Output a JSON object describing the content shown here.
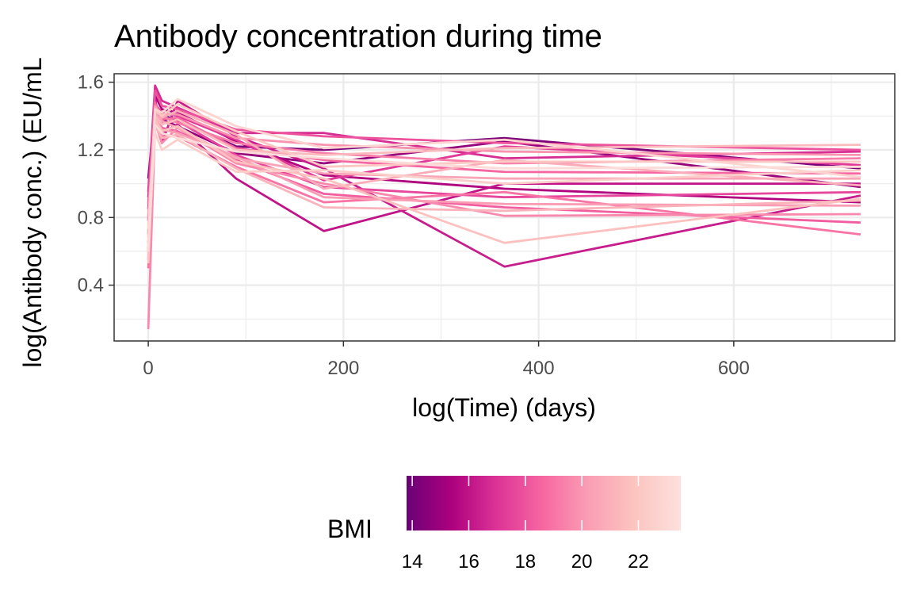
{
  "chart_data": {
    "type": "line",
    "title": "Antibody concentration during time",
    "xlabel": "log(Time) (days)",
    "ylabel": "log(Antibody conc.) (EU/mL",
    "xlim": [
      -35,
      765
    ],
    "ylim": [
      0.07,
      1.65
    ],
    "x_ticks": [
      0,
      200,
      400,
      600
    ],
    "x_tick_labels": [
      "0",
      "200",
      "400",
      "600"
    ],
    "x_minor_ticks": [
      100,
      300,
      500,
      700
    ],
    "y_ticks": [
      0.4,
      0.8,
      1.2,
      1.6
    ],
    "y_tick_labels": [
      "0.4",
      "0.8",
      "1.2",
      "1.6"
    ],
    "y_minor_ticks": [
      0.2,
      0.6,
      1.0,
      1.4
    ],
    "grid": true,
    "color_scale": {
      "name": "BMI",
      "min": 13.8,
      "max": 23.5,
      "ticks": [
        14,
        16,
        18,
        20,
        22
      ],
      "tick_labels": [
        "14",
        "16",
        "18",
        "20",
        "22"
      ],
      "colors": [
        "#6a0177",
        "#ae017e",
        "#dd3497",
        "#f768a1",
        "#fa9fb5",
        "#fcc5c0",
        "#fde0dd"
      ],
      "position": "bottom"
    },
    "x": [
      0,
      7,
      14,
      30,
      90,
      180,
      365,
      730
    ],
    "series": [
      {
        "bmi": 14.2,
        "values": [
          1.03,
          1.45,
          1.4,
          1.38,
          1.22,
          1.2,
          1.27,
          1.09
        ]
      },
      {
        "bmi": 14.8,
        "values": [
          0.92,
          1.4,
          1.38,
          1.34,
          1.18,
          1.12,
          1.25,
          0.98
        ]
      },
      {
        "bmi": 15.5,
        "values": [
          0.85,
          1.52,
          1.44,
          1.42,
          1.25,
          1.05,
          0.97,
          0.89
        ]
      },
      {
        "bmi": 16.0,
        "values": [
          0.78,
          1.5,
          1.3,
          1.35,
          1.03,
          0.72,
          1.0,
          1.0
        ]
      },
      {
        "bmi": 16.3,
        "values": [
          0.6,
          1.38,
          1.24,
          1.49,
          1.28,
          1.09,
          0.51,
          0.93
        ]
      },
      {
        "bmi": 16.8,
        "values": [
          0.95,
          1.58,
          1.49,
          1.45,
          1.3,
          1.3,
          1.15,
          1.19
        ]
      },
      {
        "bmi": 17.2,
        "values": [
          0.7,
          1.47,
          1.42,
          1.4,
          1.26,
          1.02,
          1.22,
          1.11
        ]
      },
      {
        "bmi": 17.6,
        "values": [
          0.55,
          1.43,
          1.36,
          1.37,
          1.17,
          0.98,
          0.92,
          0.95
        ]
      },
      {
        "bmi": 18.0,
        "values": [
          0.88,
          1.55,
          1.46,
          1.44,
          1.32,
          1.28,
          1.24,
          1.2
        ]
      },
      {
        "bmi": 18.3,
        "values": [
          0.65,
          1.41,
          1.33,
          1.31,
          1.14,
          0.94,
          0.86,
          0.77
        ]
      },
      {
        "bmi": 18.6,
        "values": [
          0.8,
          1.48,
          1.38,
          1.39,
          1.21,
          1.14,
          1.07,
          1.06
        ]
      },
      {
        "bmi": 19.0,
        "values": [
          0.5,
          1.36,
          1.28,
          1.28,
          1.1,
          0.89,
          0.95,
          0.7
        ]
      },
      {
        "bmi": 19.3,
        "values": [
          0.72,
          1.44,
          1.4,
          1.36,
          1.24,
          1.18,
          1.12,
          1.15
        ]
      },
      {
        "bmi": 19.6,
        "values": [
          0.14,
          1.36,
          1.24,
          1.33,
          1.12,
          1.0,
          0.81,
          0.82
        ]
      },
      {
        "bmi": 19.9,
        "values": [
          0.62,
          1.46,
          1.41,
          1.41,
          1.27,
          1.23,
          1.19,
          1.17
        ]
      },
      {
        "bmi": 20.2,
        "values": [
          0.82,
          1.39,
          1.32,
          1.3,
          1.16,
          0.92,
          0.88,
          0.87
        ]
      },
      {
        "bmi": 20.5,
        "values": [
          0.58,
          1.42,
          1.37,
          1.33,
          1.15,
          1.06,
          1.03,
          1.03
        ]
      },
      {
        "bmi": 20.8,
        "values": [
          0.68,
          1.45,
          1.39,
          1.43,
          1.29,
          0.97,
          1.14,
          0.99
        ]
      },
      {
        "bmi": 21.1,
        "values": [
          0.75,
          1.34,
          1.27,
          1.29,
          1.09,
          0.86,
          0.84,
          0.9
        ]
      },
      {
        "bmi": 21.4,
        "values": [
          0.57,
          1.4,
          1.35,
          1.38,
          1.2,
          1.17,
          1.21,
          1.23
        ]
      },
      {
        "bmi": 21.7,
        "values": [
          0.63,
          1.38,
          1.31,
          1.34,
          1.13,
          1.03,
          0.65,
          0.91
        ]
      },
      {
        "bmi": 22.0,
        "values": [
          0.53,
          1.43,
          1.4,
          1.47,
          1.31,
          1.1,
          1.13,
          1.13
        ]
      },
      {
        "bmi": 22.4,
        "values": [
          0.66,
          1.3,
          1.2,
          1.26,
          1.07,
          1.08,
          1.0,
          1.08
        ]
      },
      {
        "bmi": 22.8,
        "values": [
          0.73,
          1.44,
          1.42,
          1.5,
          1.34,
          1.21,
          1.26,
          1.04
        ]
      },
      {
        "bmi": 23.2,
        "values": [
          0.6,
          1.35,
          1.3,
          1.27,
          1.19,
          1.15,
          1.09,
          1.1
        ]
      }
    ]
  }
}
